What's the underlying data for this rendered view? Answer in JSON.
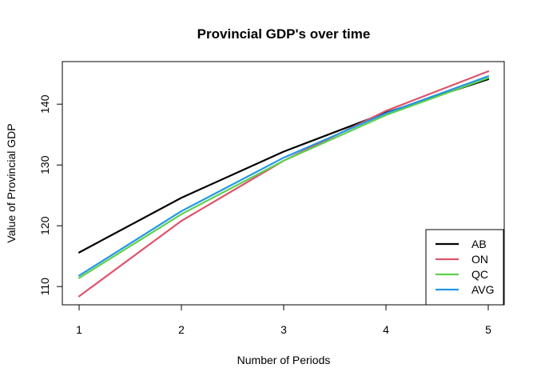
{
  "chart_data": {
    "type": "line",
    "title": "Provincial GDP's over time",
    "xlabel": "Number of Periods",
    "ylabel": "Value of Provincial GDP",
    "x": [
      1,
      2,
      3,
      4,
      5
    ],
    "xlim": [
      1,
      5
    ],
    "ylim": [
      107,
      147
    ],
    "x_ticks": [
      1,
      2,
      3,
      4,
      5
    ],
    "y_ticks": [
      110,
      120,
      130,
      140
    ],
    "grid": false,
    "legend_position": "bottom-right",
    "series": [
      {
        "name": "AB",
        "color": "#000000",
        "values": [
          115.6,
          124.6,
          132.2,
          138.6,
          144.1
        ]
      },
      {
        "name": "ON",
        "color": "#DF536B",
        "values": [
          108.4,
          120.8,
          130.7,
          138.9,
          145.4
        ]
      },
      {
        "name": "QC",
        "color": "#61D04F",
        "values": [
          111.4,
          121.9,
          130.7,
          138.2,
          144.3
        ]
      },
      {
        "name": "AVG",
        "color": "#2297E6",
        "values": [
          111.8,
          122.4,
          131.2,
          138.5,
          144.6
        ]
      }
    ]
  }
}
